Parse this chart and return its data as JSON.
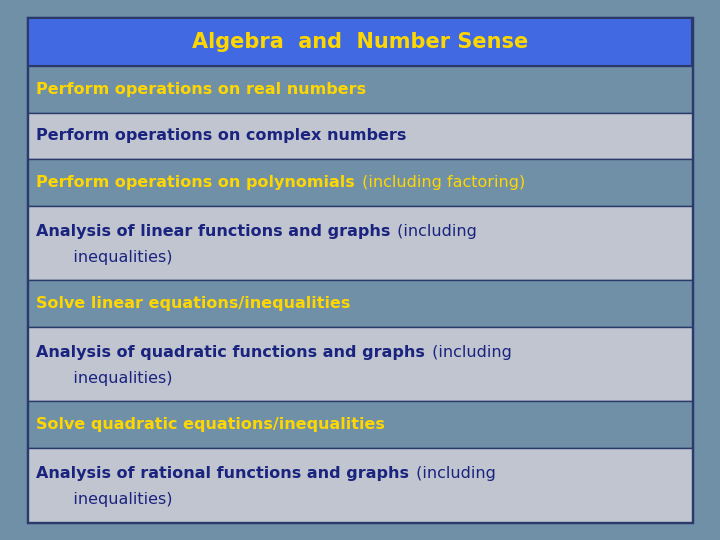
{
  "title": "Algebra  and  Number Sense",
  "title_bg": "#4169e1",
  "title_color": "#ffd700",
  "background_color": "#7090a8",
  "outer_border_color": "#2a3a6a",
  "row_bg_blue": "#7090a8",
  "row_bg_gray": "#c0c5d0",
  "rows": [
    {
      "line1_bold": "Perform operations on real numbers",
      "line1_normal": "",
      "line2": "",
      "color": "#ffd700",
      "bg": "blue",
      "multiline": false
    },
    {
      "line1_bold": "Perform operations on complex numbers",
      "line1_normal": "",
      "line2": "",
      "color": "#1a237e",
      "bg": "gray",
      "multiline": false
    },
    {
      "line1_bold": "Perform operations on polynomials",
      "line1_normal": " (including factoring)",
      "line2": "",
      "color": "#ffd700",
      "bg": "blue",
      "multiline": false
    },
    {
      "line1_bold": "Analysis of linear functions and graphs",
      "line1_normal": " (including",
      "line2": "   inequalities)",
      "color": "#1a237e",
      "bg": "gray",
      "multiline": true
    },
    {
      "line1_bold": "Solve linear equations/inequalities",
      "line1_normal": "",
      "line2": "",
      "color": "#ffd700",
      "bg": "blue",
      "multiline": false
    },
    {
      "line1_bold": "Analysis of quadratic functions and graphs",
      "line1_normal": " (including",
      "line2": "   inequalities)",
      "color": "#1a237e",
      "bg": "gray",
      "multiline": true
    },
    {
      "line1_bold": "Solve quadratic equations/inequalities",
      "line1_normal": "",
      "line2": "",
      "color": "#ffd700",
      "bg": "blue",
      "multiline": false
    },
    {
      "line1_bold": "Analysis of rational functions and graphs",
      "line1_normal": " (including",
      "line2": "   inequalities)",
      "color": "#1a237e",
      "bg": "gray",
      "multiline": true
    }
  ]
}
